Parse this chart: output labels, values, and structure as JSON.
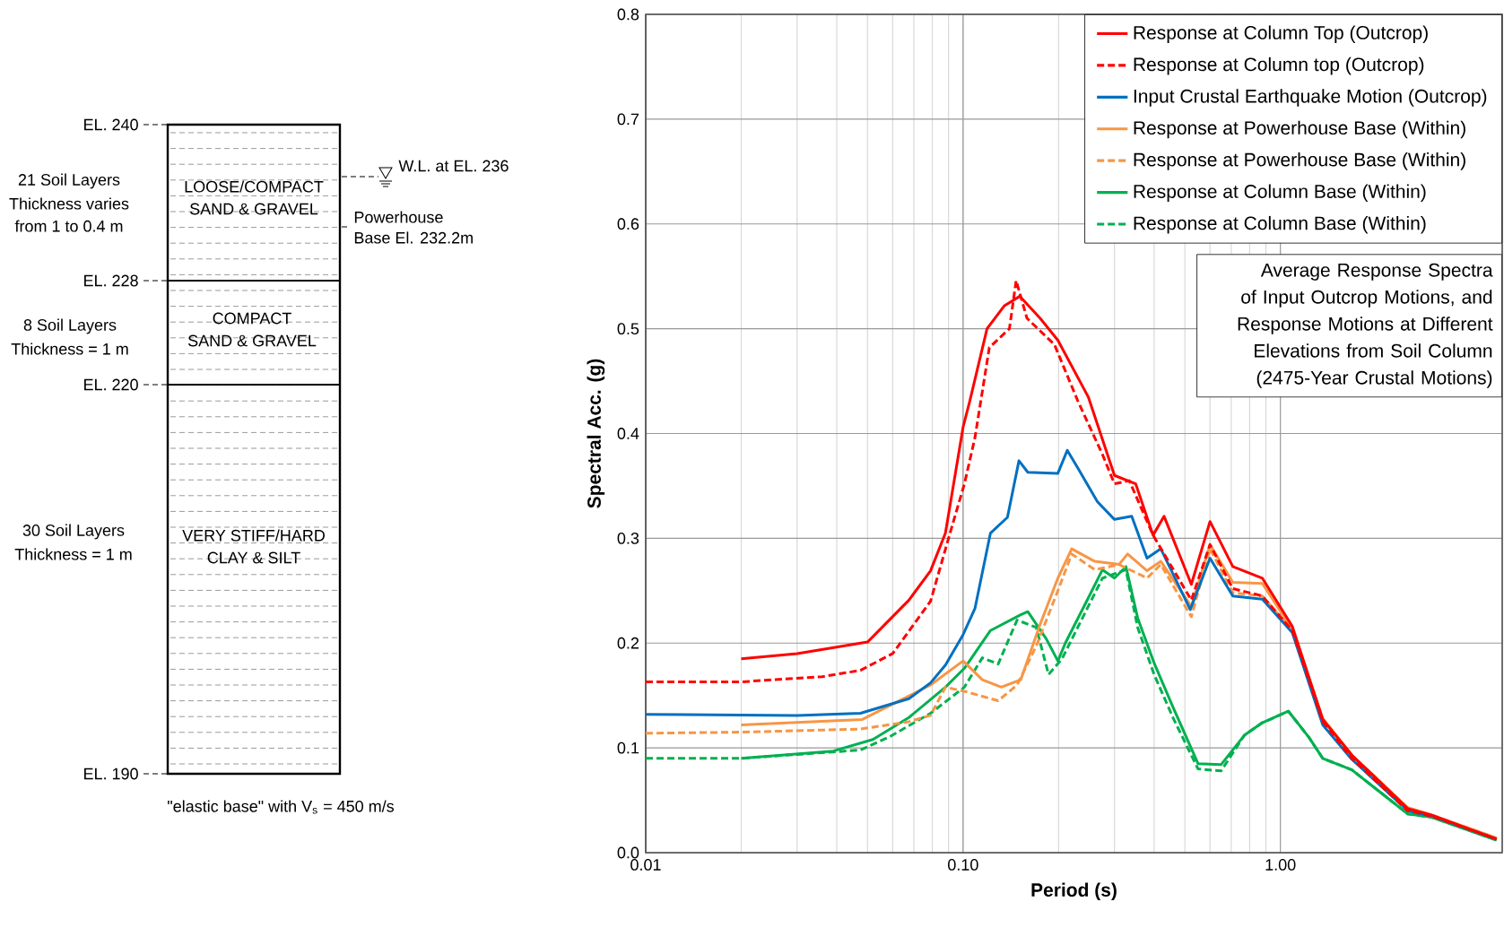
{
  "chart_data": [
    {
      "type": "other",
      "annotations": [
        "EL. 240",
        "EL. 228",
        "EL. 220",
        "EL. 190",
        "21 Soil Layers",
        "Thickness varies",
        "from 1 to 0.4 m",
        "LOOSE/COMPACT",
        "SAND & GRAVEL",
        "8 Soil Layers",
        "Thickness = 1 m",
        "COMPACT",
        "SAND & GRAVEL",
        "30 Soil Layers",
        "Thickness = 1 m",
        "VERY STIFF/HARD",
        "CLAY & SILT",
        "W.L. at EL. 236",
        "Powerhouse",
        "Base El. 232.2m",
        "\"elastic base\"  with V$_{s}$ = 450 m/s"
      ]
    },
    {
      "type": "line",
      "xlabel": "Period (s)",
      "ylabel": "Spectral Acc. (g)",
      "log": "x",
      "grid": true,
      "legend": "top right",
      "xlim": [
        0.01,
        5
      ],
      "ylim": [
        0,
        0.8
      ],
      "xticks": [
        {
          "value": 0.01,
          "label": "0.01"
        },
        {
          "value": 0.1,
          "label": "0.10"
        },
        {
          "value": 1,
          "label": "1.00"
        }
      ],
      "yticks": [
        {
          "value": 0,
          "label": "0.0"
        },
        {
          "value": 0.1,
          "label": "0.1"
        },
        {
          "value": 0.2,
          "label": "0.2"
        },
        {
          "value": 0.3,
          "label": "0.3"
        },
        {
          "value": 0.4,
          "label": "0.4"
        },
        {
          "value": 0.5,
          "label": "0.5"
        },
        {
          "value": 0.6,
          "label": "0.6"
        },
        {
          "value": 0.7,
          "label": "0.7"
        },
        {
          "value": 0.8,
          "label": "0.8"
        }
      ],
      "annotations": [
        "Average Response Spectra of Input Outcrop Motions, and Response Motions at Different Elevations from Soil Column (2475-Year Crustal Motions)"
      ],
      "series": [
        {
          "name": "Response at Column Top (Outcrop)",
          "color": "#ff0000",
          "line_style": "solid",
          "x": [
            0.02,
            0.03,
            0.05,
            0.0675,
            0.079,
            0.088,
            0.1,
            0.105,
            0.119,
            0.135,
            0.151,
            0.175,
            0.199,
            0.248,
            0.3,
            0.35,
            0.397,
            0.43,
            0.524,
            0.6,
            0.708,
            0.877,
            1.09,
            1.36,
            1.68,
            2.52,
            2.99,
            4.8
          ],
          "values": [
            0.185,
            0.19,
            0.201,
            0.241,
            0.269,
            0.305,
            0.406,
            0.431,
            0.5,
            0.522,
            0.531,
            0.51,
            0.489,
            0.435,
            0.36,
            0.352,
            0.303,
            0.321,
            0.256,
            0.316,
            0.273,
            0.262,
            0.216,
            0.127,
            0.093,
            0.042,
            0.036,
            0.013
          ]
        },
        {
          "name": "Response at Column top (Outcrop)",
          "color": "#ff0000",
          "line_style": "dashed",
          "x": [
            0.01,
            0.02,
            0.036,
            0.0475,
            0.06,
            0.079,
            0.091,
            0.101,
            0.109,
            0.121,
            0.14,
            0.147,
            0.159,
            0.194,
            0.23,
            0.275,
            0.3,
            0.334,
            0.397,
            0.524,
            0.6,
            0.708,
            0.877,
            1.09,
            1.36,
            1.68,
            2.52,
            2.99,
            4.8
          ],
          "values": [
            0.163,
            0.163,
            0.168,
            0.174,
            0.19,
            0.24,
            0.305,
            0.352,
            0.396,
            0.482,
            0.5,
            0.546,
            0.51,
            0.485,
            0.431,
            0.38,
            0.352,
            0.355,
            0.303,
            0.241,
            0.294,
            0.252,
            0.245,
            0.212,
            0.125,
            0.09,
            0.04,
            0.035,
            0.013
          ]
        },
        {
          "name": "Input Crustal Earthquake Motion (Outcrop)",
          "color": "#0070c0",
          "line_style": "solid",
          "x": [
            0.01,
            0.03,
            0.0475,
            0.0675,
            0.079,
            0.088,
            0.1,
            0.109,
            0.122,
            0.138,
            0.15,
            0.16,
            0.199,
            0.213,
            0.23,
            0.265,
            0.3,
            0.34,
            0.38,
            0.42,
            0.52,
            0.6,
            0.708,
            0.877,
            1.09,
            1.36,
            1.68,
            2.52,
            2.99,
            4.8
          ],
          "values": [
            0.132,
            0.131,
            0.133,
            0.147,
            0.162,
            0.179,
            0.208,
            0.233,
            0.305,
            0.32,
            0.374,
            0.363,
            0.362,
            0.384,
            0.367,
            0.335,
            0.318,
            0.321,
            0.281,
            0.29,
            0.232,
            0.281,
            0.245,
            0.242,
            0.21,
            0.122,
            0.089,
            0.04,
            0.035,
            0.013
          ]
        },
        {
          "name": "Response at Powerhouse Base (Within)",
          "color": "#f79646",
          "line_style": "solid",
          "x": [
            0.02,
            0.048,
            0.079,
            0.1,
            0.115,
            0.132,
            0.152,
            0.174,
            0.199,
            0.22,
            0.26,
            0.31,
            0.33,
            0.38,
            0.42,
            0.524,
            0.6,
            0.708,
            0.877,
            1.09,
            1.36,
            1.68,
            2.52,
            2.99,
            4.8
          ],
          "values": [
            0.122,
            0.127,
            0.16,
            0.183,
            0.165,
            0.158,
            0.165,
            0.216,
            0.262,
            0.29,
            0.278,
            0.275,
            0.285,
            0.269,
            0.278,
            0.235,
            0.294,
            0.258,
            0.257,
            0.213,
            0.128,
            0.093,
            0.043,
            0.036,
            0.014
          ]
        },
        {
          "name": "Response at Powerhouse Base (Within)",
          "color": "#f79646",
          "line_style": "dashed",
          "x": [
            0.01,
            0.02,
            0.0475,
            0.0675,
            0.079,
            0.088,
            0.101,
            0.129,
            0.148,
            0.17,
            0.199,
            0.22,
            0.26,
            0.31,
            0.38,
            0.42,
            0.524,
            0.6,
            0.708,
            0.877,
            1.09,
            1.36,
            1.68,
            2.52,
            2.99,
            4.8
          ],
          "values": [
            0.114,
            0.115,
            0.118,
            0.125,
            0.131,
            0.158,
            0.154,
            0.145,
            0.16,
            0.197,
            0.25,
            0.285,
            0.27,
            0.275,
            0.262,
            0.275,
            0.225,
            0.29,
            0.248,
            0.245,
            0.212,
            0.128,
            0.093,
            0.043,
            0.036,
            0.014
          ]
        },
        {
          "name": "Response at Column Base (Within)",
          "color": "#00b050",
          "line_style": "solid",
          "x": [
            0.02,
            0.039,
            0.052,
            0.0675,
            0.088,
            0.101,
            0.122,
            0.152,
            0.16,
            0.183,
            0.199,
            0.21,
            0.248,
            0.275,
            0.3,
            0.326,
            0.355,
            0.4,
            0.46,
            0.55,
            0.65,
            0.77,
            0.877,
            1.06,
            1.23,
            1.36,
            1.68,
            2.52,
            2.99,
            4.8
          ],
          "values": [
            0.09,
            0.097,
            0.108,
            0.129,
            0.158,
            0.176,
            0.212,
            0.227,
            0.23,
            0.204,
            0.183,
            0.2,
            0.243,
            0.27,
            0.262,
            0.273,
            0.224,
            0.181,
            0.138,
            0.085,
            0.084,
            0.112,
            0.124,
            0.135,
            0.11,
            0.09,
            0.079,
            0.037,
            0.034,
            0.012
          ]
        },
        {
          "name": "Response at Column Base (Within)",
          "color": "#00b050",
          "line_style": "dashed",
          "x": [
            0.01,
            0.02,
            0.0475,
            0.059,
            0.079,
            0.101,
            0.115,
            0.129,
            0.148,
            0.17,
            0.186,
            0.205,
            0.248,
            0.275,
            0.326,
            0.355,
            0.4,
            0.46,
            0.55,
            0.65,
            0.77,
            0.877,
            1.06,
            1.23,
            1.36,
            1.68,
            2.52,
            2.99,
            4.8
          ],
          "values": [
            0.09,
            0.09,
            0.098,
            0.111,
            0.133,
            0.158,
            0.186,
            0.18,
            0.222,
            0.215,
            0.17,
            0.185,
            0.235,
            0.262,
            0.27,
            0.215,
            0.17,
            0.128,
            0.08,
            0.078,
            0.112,
            0.124,
            0.135,
            0.11,
            0.09,
            0.079,
            0.037,
            0.034,
            0.012
          ]
        }
      ]
    }
  ]
}
